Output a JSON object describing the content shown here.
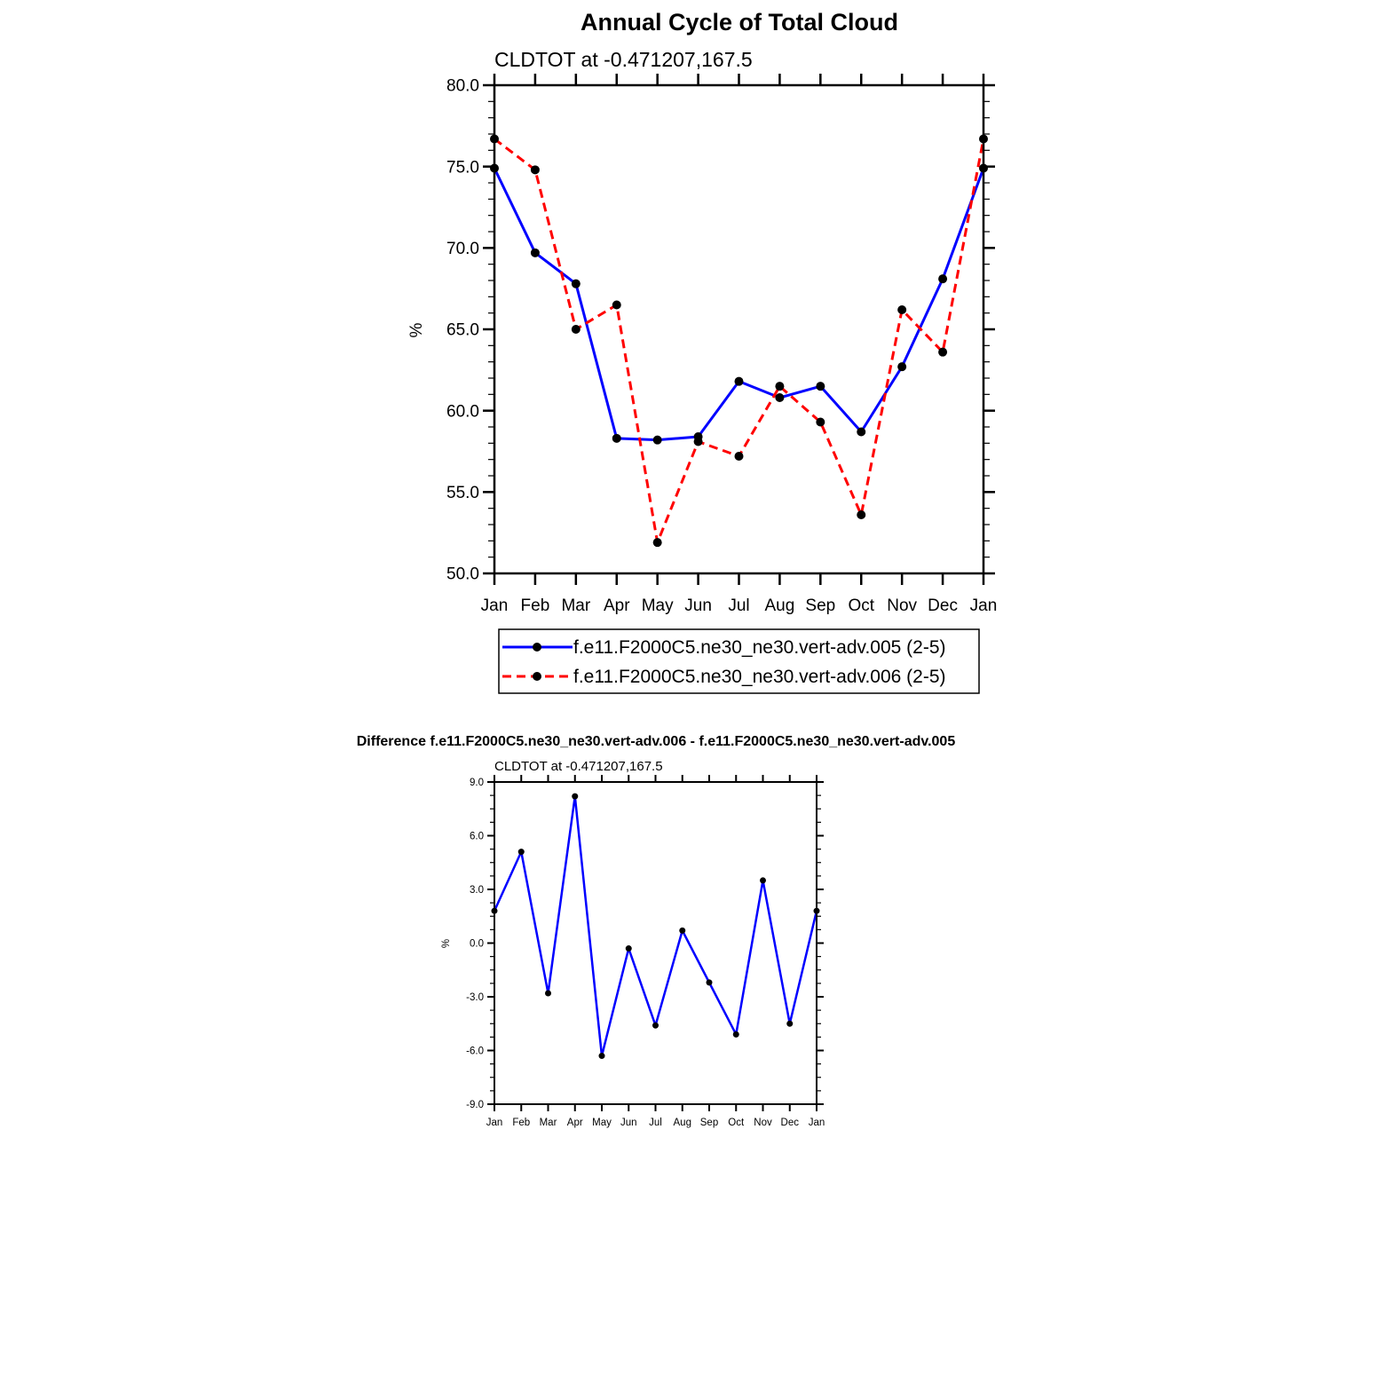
{
  "chart_data": [
    {
      "type": "line",
      "title": "Annual Cycle of Total Cloud",
      "subtitle": "CLDTOT at -0.471207,167.5",
      "xlabel": "",
      "ylabel": "%",
      "categories": [
        "Jan",
        "Feb",
        "Mar",
        "Apr",
        "May",
        "Jun",
        "Jul",
        "Aug",
        "Sep",
        "Oct",
        "Nov",
        "Dec",
        "Jan"
      ],
      "ylim": [
        50.0,
        80.0
      ],
      "yticks": [
        "50.0",
        "55.0",
        "60.0",
        "65.0",
        "70.0",
        "75.0",
        "80.0"
      ],
      "grid": false,
      "legend_position": "bottom",
      "series": [
        {
          "name": "f.e11.F2000C5.ne30_ne30.vert-adv.005 (2-5)",
          "color": "#0000ff",
          "dash": "solid",
          "values": [
            74.9,
            69.7,
            67.8,
            58.3,
            58.2,
            58.4,
            61.8,
            60.8,
            61.5,
            58.7,
            62.7,
            68.1,
            74.9
          ]
        },
        {
          "name": "f.e11.F2000C5.ne30_ne30.vert-adv.006 (2-5)",
          "color": "#ff0000",
          "dash": "dashed",
          "values": [
            76.7,
            74.8,
            65.0,
            66.5,
            51.9,
            58.1,
            57.2,
            61.5,
            59.3,
            53.6,
            66.2,
            63.6,
            76.7
          ]
        }
      ]
    },
    {
      "type": "line",
      "title": "Difference f.e11.F2000C5.ne30_ne30.vert-adv.006 - f.e11.F2000C5.ne30_ne30.vert-adv.005",
      "subtitle": "CLDTOT at -0.471207,167.5",
      "xlabel": "",
      "ylabel": "%",
      "categories": [
        "Jan",
        "Feb",
        "Mar",
        "Apr",
        "May",
        "Jun",
        "Jul",
        "Aug",
        "Sep",
        "Oct",
        "Nov",
        "Dec",
        "Jan"
      ],
      "ylim": [
        -9.0,
        9.0
      ],
      "yticks": [
        "-9.0",
        "-6.0",
        "-3.0",
        "0.0",
        "3.0",
        "6.0",
        "9.0"
      ],
      "grid": false,
      "series": [
        {
          "name": "difference",
          "color": "#0000ff",
          "dash": "solid",
          "values": [
            1.8,
            5.1,
            -2.8,
            8.2,
            -6.3,
            -0.3,
            -4.6,
            0.7,
            -2.2,
            -5.1,
            3.5,
            -4.5,
            1.8
          ]
        }
      ]
    }
  ]
}
